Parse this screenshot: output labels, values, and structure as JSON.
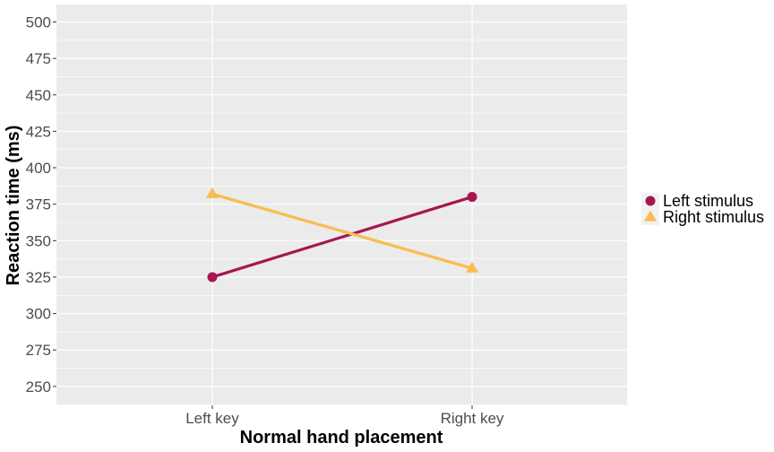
{
  "chart_data": {
    "type": "line",
    "xlabel": "Normal hand placement",
    "ylabel": "Reaction time (ms)",
    "categories": [
      "Left key",
      "Right key"
    ],
    "ylim": [
      237,
      512
    ],
    "yticks": [
      250,
      275,
      300,
      325,
      350,
      375,
      400,
      425,
      450,
      475,
      500
    ],
    "grid": true,
    "legend_position": "right",
    "series": [
      {
        "name": "Left stimulus",
        "values": [
          325,
          380
        ],
        "color": "#A6174F",
        "marker": "circle"
      },
      {
        "name": "Right stimulus",
        "values": [
          382,
          331
        ],
        "color": "#F9BC51",
        "marker": "triangle"
      }
    ],
    "background_color": "#EBEBEB",
    "grid_color": "#FFFFFF"
  }
}
